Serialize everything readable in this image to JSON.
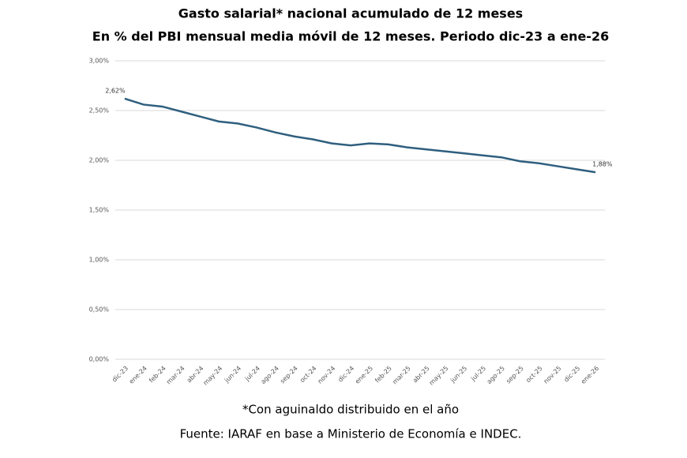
{
  "chart_data": {
    "type": "line",
    "title": "Gasto salarial* nacional acumulado de 12 meses",
    "subtitle": "En % del PBI mensual media móvil de 12 meses. Periodo dic-23 a ene-26",
    "categories": [
      "dic-23",
      "ene-24",
      "feb-24",
      "mar-24",
      "abr-24",
      "may-24",
      "jun-24",
      "jul-24",
      "ago-24",
      "sep-24",
      "oct-24",
      "nov-24",
      "dic-24",
      "ene-25",
      "feb-25",
      "mar-25",
      "abr-25",
      "may-25",
      "jun-25",
      "jul-25",
      "ago-25",
      "sep-25",
      "oct-25",
      "nov-25",
      "dic-25",
      "ene-26"
    ],
    "series": [
      {
        "color": "#2f5f7f",
        "values": [
          2.62,
          2.56,
          2.54,
          2.49,
          2.44,
          2.39,
          2.37,
          2.33,
          2.28,
          2.24,
          2.21,
          2.17,
          2.15,
          2.17,
          2.16,
          2.13,
          2.11,
          2.09,
          2.07,
          2.05,
          2.03,
          1.99,
          1.97,
          1.94,
          1.91,
          1.88
        ],
        "value_labels": [
          "2,62%",
          null,
          null,
          null,
          null,
          null,
          null,
          null,
          null,
          null,
          null,
          null,
          null,
          null,
          null,
          null,
          null,
          null,
          null,
          null,
          null,
          null,
          null,
          null,
          null,
          "1,88%"
        ]
      }
    ],
    "ylim": [
      0,
      3
    ],
    "yticks": [
      {
        "value": 0,
        "label": "0,00%"
      },
      {
        "value": 0.5,
        "label": "0,50%"
      },
      {
        "value": 1,
        "label": "1,00%"
      },
      {
        "value": 1.5,
        "label": "1,50%"
      },
      {
        "value": 2,
        "label": "2,00%"
      },
      {
        "value": 2.5,
        "label": "2,50%"
      },
      {
        "value": 3,
        "label": "3,00%"
      }
    ],
    "grid": true,
    "footnotes": [
      "*Con aguinaldo distribuido en el año",
      "Fuente: IARAF en base a Ministerio de Economía e INDEC."
    ]
  }
}
